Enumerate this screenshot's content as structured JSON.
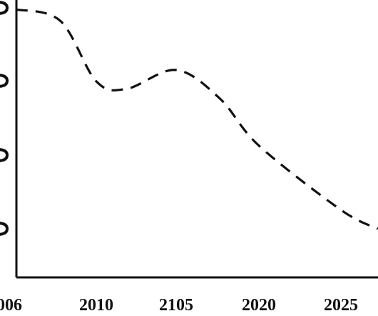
{
  "chart_data": {
    "type": "line",
    "title": "",
    "xlabel": "",
    "ylabel": "",
    "x_tick_labels": [
      "006",
      "2010",
      "2105",
      "2020",
      "2025"
    ],
    "y_tick_labels": [
      "",
      "",
      "",
      ""
    ],
    "series": [
      {
        "line_style": "dashed",
        "color": "#111111",
        "points": [
          {
            "x": 0,
            "y": 3.9
          },
          {
            "x": 0.55,
            "y": 3.75
          },
          {
            "x": 1,
            "y": 2.95
          },
          {
            "x": 1.38,
            "y": 2.85
          },
          {
            "x": 2,
            "y": 3.1
          },
          {
            "x": 2.53,
            "y": 2.72
          },
          {
            "x": 3,
            "y": 2.1
          },
          {
            "x": 4,
            "y": 1.25
          },
          {
            "x": 4.45,
            "y": 1.0
          }
        ]
      }
    ],
    "xlim": [
      0,
      4.45
    ],
    "ylim": [
      0,
      4
    ],
    "grid": false,
    "legend": "none"
  }
}
